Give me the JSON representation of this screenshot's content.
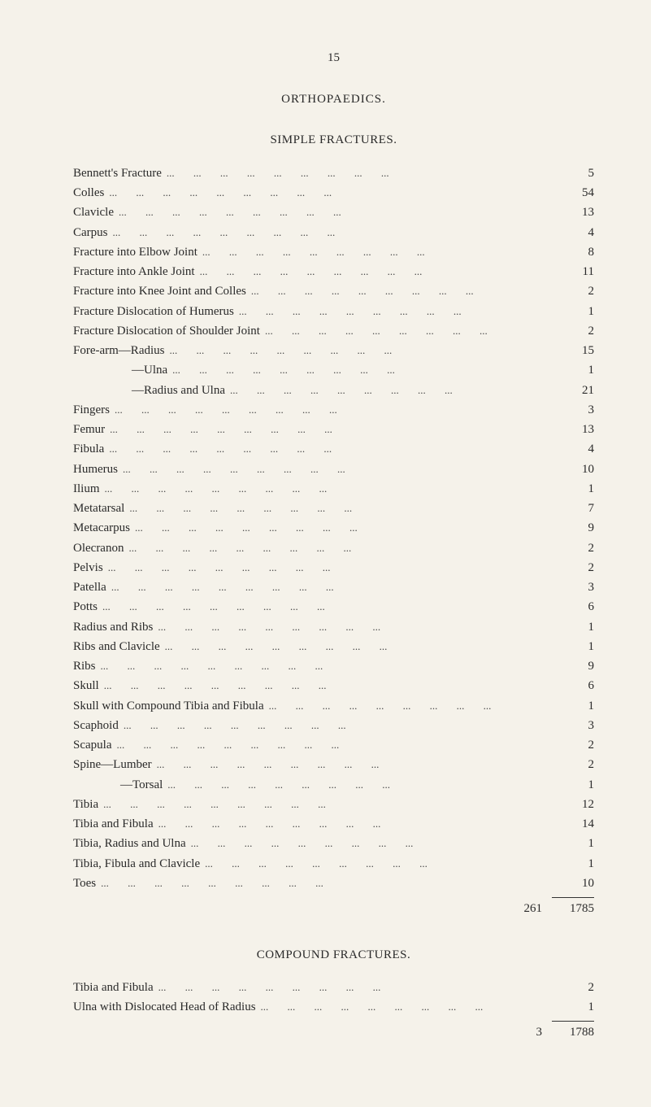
{
  "page_number": "15",
  "main_title": "ORTHOPAEDICS.",
  "section1": {
    "title": "SIMPLE FRACTURES.",
    "entries": [
      {
        "label": "Bennett's Fracture",
        "value": "5",
        "indent": 0
      },
      {
        "label": "Colles",
        "value": "54",
        "indent": 0
      },
      {
        "label": "Clavicle",
        "value": "13",
        "indent": 0
      },
      {
        "label": "Carpus",
        "value": "4",
        "indent": 0
      },
      {
        "label": "Fracture into Elbow Joint",
        "value": "8",
        "indent": 0
      },
      {
        "label": "Fracture into Ankle Joint",
        "value": "11",
        "indent": 0
      },
      {
        "label": "Fracture into Knee Joint and Colles",
        "value": "2",
        "indent": 0
      },
      {
        "label": "Fracture Dislocation of Humerus",
        "value": "1",
        "indent": 0
      },
      {
        "label": "Fracture Dislocation of Shoulder Joint",
        "value": "2",
        "indent": 0
      },
      {
        "label": "Fore-arm—Radius",
        "value": "15",
        "indent": 0
      },
      {
        "label": "—Ulna",
        "value": "1",
        "indent": 1
      },
      {
        "label": "—Radius and Ulna",
        "value": "21",
        "indent": 1
      },
      {
        "label": "Fingers",
        "value": "3",
        "indent": 0
      },
      {
        "label": "Femur",
        "value": "13",
        "indent": 0
      },
      {
        "label": "Fibula",
        "value": "4",
        "indent": 0
      },
      {
        "label": "Humerus",
        "value": "10",
        "indent": 0
      },
      {
        "label": "Ilium",
        "value": "1",
        "indent": 0
      },
      {
        "label": "Metatarsal",
        "value": "7",
        "indent": 0
      },
      {
        "label": "Metacarpus",
        "value": "9",
        "indent": 0
      },
      {
        "label": "Olecranon",
        "value": "2",
        "indent": 0
      },
      {
        "label": "Pelvis",
        "value": "2",
        "indent": 0
      },
      {
        "label": "Patella",
        "value": "3",
        "indent": 0
      },
      {
        "label": "Potts",
        "value": "6",
        "indent": 0
      },
      {
        "label": "Radius and Ribs",
        "value": "1",
        "indent": 0
      },
      {
        "label": "Ribs and Clavicle",
        "value": "1",
        "indent": 0
      },
      {
        "label": "Ribs",
        "value": "9",
        "indent": 0
      },
      {
        "label": "Skull",
        "value": "6",
        "indent": 0
      },
      {
        "label": "Skull with Compound Tibia and Fibula",
        "value": "1",
        "indent": 0
      },
      {
        "label": "Scaphoid",
        "value": "3",
        "indent": 0
      },
      {
        "label": "Scapula",
        "value": "2",
        "indent": 0
      },
      {
        "label": "Spine—Lumber",
        "value": "2",
        "indent": 0
      },
      {
        "label": "—Torsal",
        "value": "1",
        "indent": 2
      },
      {
        "label": "Tibia",
        "value": "12",
        "indent": 0
      },
      {
        "label": "Tibia and Fibula",
        "value": "14",
        "indent": 0
      },
      {
        "label": "Tibia, Radius and Ulna",
        "value": "1",
        "indent": 0
      },
      {
        "label": "Tibia, Fibula and Clavicle",
        "value": "1",
        "indent": 0
      },
      {
        "label": "Toes",
        "value": "10",
        "indent": 0
      }
    ],
    "subtotal": "261",
    "grand_total": "1785"
  },
  "section2": {
    "title": "COMPOUND FRACTURES.",
    "entries": [
      {
        "label": "Tibia and Fibula",
        "value": "2",
        "indent": 0
      },
      {
        "label": "Ulna with Dislocated Head of Radius",
        "value": "1",
        "indent": 0
      }
    ],
    "subtotal": "3",
    "grand_total": "1788"
  }
}
